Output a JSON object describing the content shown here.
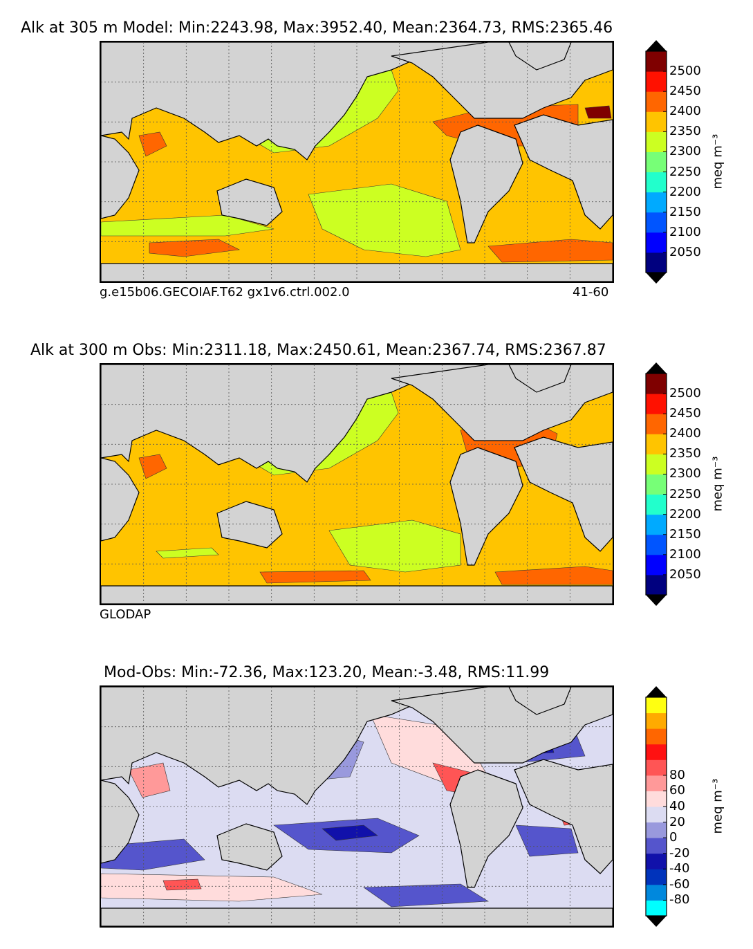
{
  "chart_data": [
    {
      "type": "heatmap",
      "title": "Alk at 305 m Model: Min:2243.98, Max:3952.40, Mean:2364.73, RMS:2365.46",
      "footer_left": "g.e15b06.GECOIAF.T62 gx1v6.ctrl.002.0",
      "footer_right": "41-60",
      "colorbar": {
        "units": "meq m$^{-3}$",
        "units_display": "meq m⁻³",
        "ticks": [
          "2050",
          "2100",
          "2150",
          "2200",
          "2250",
          "2300",
          "2350",
          "2400",
          "2450",
          "2500"
        ],
        "colors": [
          "#00007f",
          "#0000ff",
          "#0055ff",
          "#00aaff",
          "#22ffcc",
          "#77ff77",
          "#ccff22",
          "#ffc400",
          "#ff6600",
          "#ff1100",
          "#7f0000"
        ],
        "extend_colors": [
          "#000000",
          "#000000"
        ]
      },
      "grid": true
    },
    {
      "type": "heatmap",
      "title": "Alk at 300 m Obs: Min:2311.18, Max:2450.61, Mean:2367.74, RMS:2367.87",
      "footer_left": "GLODAP",
      "colorbar": {
        "units": "meq m$^{-3}$",
        "units_display": "meq m⁻³",
        "ticks": [
          "2050",
          "2100",
          "2150",
          "2200",
          "2250",
          "2300",
          "2350",
          "2400",
          "2450",
          "2500"
        ],
        "colors": [
          "#00007f",
          "#0000ff",
          "#0055ff",
          "#00aaff",
          "#22ffcc",
          "#77ff77",
          "#ccff22",
          "#ffc400",
          "#ff6600",
          "#ff1100",
          "#7f0000"
        ],
        "extend_colors": [
          "#000000",
          "#000000"
        ]
      },
      "grid": true
    },
    {
      "type": "heatmap",
      "title": "Mod-Obs: Min:-72.36, Max:123.20, Mean:-3.48, RMS:11.99",
      "colorbar": {
        "units": "meq m$^{-3}$",
        "units_display": "meq m⁻³",
        "ticks": [
          "-80",
          "-60",
          "-40",
          "-20",
          "0",
          "20",
          "40",
          "60",
          "80"
        ],
        "colors": [
          "#00ffff",
          "#0088dd",
          "#0033bb",
          "#1111aa",
          "#5555cc",
          "#9999dd",
          "#dcdcf2",
          "#ffdcdc",
          "#ff9999",
          "#ff5555",
          "#ff1111",
          "#ff6600",
          "#ffaa00",
          "#ffff11"
        ],
        "extend_colors": [
          "#000000",
          "#000000"
        ]
      },
      "grid": true
    }
  ],
  "land_color": "#d3d3d3"
}
